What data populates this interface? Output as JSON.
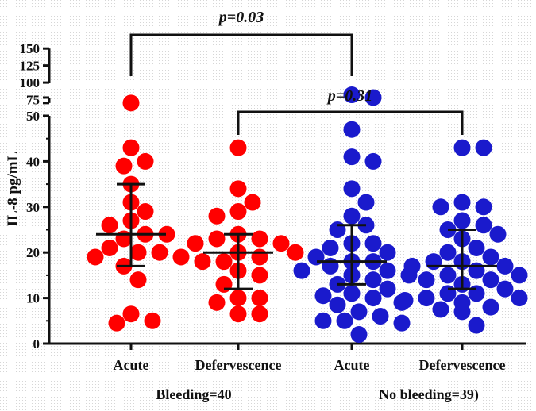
{
  "chart_data": {
    "type": "scatter",
    "ylabel": "IL-8 pg/mL",
    "y_ticks_lower": [
      "0",
      "10",
      "20",
      "30",
      "40",
      "50"
    ],
    "y_ticks_upper": [
      "75",
      "100",
      "125",
      "150"
    ],
    "ylim": [
      0,
      150
    ],
    "y_axis_break": "between 50 and 75",
    "categories": [
      "Acute",
      "Defervescence",
      "Acute",
      "Defervescence"
    ],
    "groups": [
      {
        "label": "Bleeding=40",
        "color": "#ff0000"
      },
      {
        "label": "No bleeding=39)",
        "color": "#1a1acc"
      }
    ],
    "series": [
      {
        "category": "Acute",
        "group": 0,
        "median": 24,
        "q1": 17,
        "q3": 35,
        "values": [
          70,
          43,
          40,
          39,
          35,
          31,
          29,
          27,
          26,
          24,
          24,
          23,
          21,
          20,
          20,
          19,
          19,
          17,
          14,
          6.5,
          5,
          4.5
        ]
      },
      {
        "category": "Defervescence",
        "group": 0,
        "median": 20,
        "q1": 12,
        "q3": 24,
        "values": [
          43,
          34,
          31,
          29,
          28,
          24,
          23,
          23,
          22,
          22,
          20,
          20,
          19,
          18,
          18,
          16,
          15,
          13,
          10,
          10,
          9,
          6.5,
          6.5
        ]
      },
      {
        "category": "Acute",
        "group": 1,
        "median": 18,
        "q1": 13,
        "q3": 26,
        "values": [
          78,
          82,
          47,
          41,
          40,
          34,
          31,
          28,
          26,
          25,
          22,
          22,
          21,
          20,
          19,
          18,
          18,
          17,
          16,
          16,
          15,
          15,
          14,
          13,
          12,
          11,
          10.5,
          10,
          9,
          8.5,
          7,
          6,
          5,
          5,
          4.5,
          2
        ]
      },
      {
        "category": "Defervescence",
        "group": 1,
        "median": 17,
        "q1": 12,
        "q3": 25,
        "values": [
          43,
          43,
          31,
          30,
          30,
          27,
          26,
          25,
          24,
          23,
          21,
          20,
          19,
          18,
          18,
          17,
          17,
          16,
          15,
          15,
          14,
          14,
          13,
          12,
          11,
          11,
          10,
          10,
          9.5,
          9,
          8,
          7.5,
          7,
          4
        ]
      }
    ],
    "comparisons": [
      {
        "from": 0,
        "to": 2,
        "label": "p=0.03"
      },
      {
        "from": 1,
        "to": 3,
        "label": "p=0.31"
      }
    ]
  }
}
